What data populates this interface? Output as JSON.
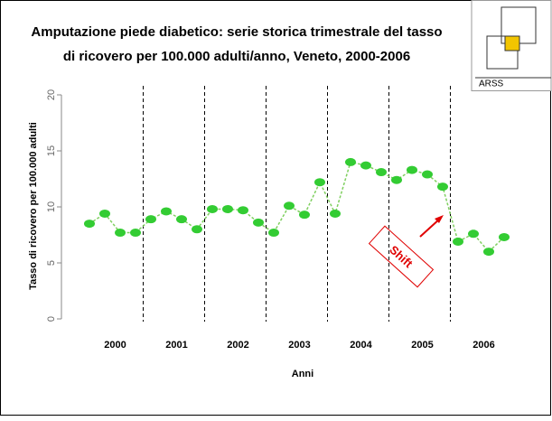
{
  "chart_data": {
    "type": "line",
    "title": [
      "Amputazione piede diabetico: serie storica trimestrale del tasso",
      "di ricovero per 100.000 adulti/anno, Veneto, 2000-2006"
    ],
    "logo": "ARSS",
    "y_label": "Tasso di ricovero per 100.000 adulti",
    "x_label": "Anni",
    "groups": [
      "2000",
      "2001",
      "2002",
      "2003",
      "2004",
      "2005",
      "2006"
    ],
    "values": [
      8.5,
      9.4,
      7.7,
      7.7,
      8.9,
      9.6,
      8.9,
      8.0,
      9.8,
      9.8,
      9.7,
      8.6,
      7.7,
      10.1,
      9.3,
      12.2,
      9.4,
      14.0,
      13.7,
      13.1,
      12.4,
      13.3,
      12.9,
      11.8,
      6.9,
      7.6,
      6.0,
      7.3
    ],
    "color": "#33cc33",
    "ylim": [
      0,
      20
    ],
    "yticks": [
      0,
      5,
      10,
      15,
      20
    ],
    "annotation": "Shift"
  }
}
